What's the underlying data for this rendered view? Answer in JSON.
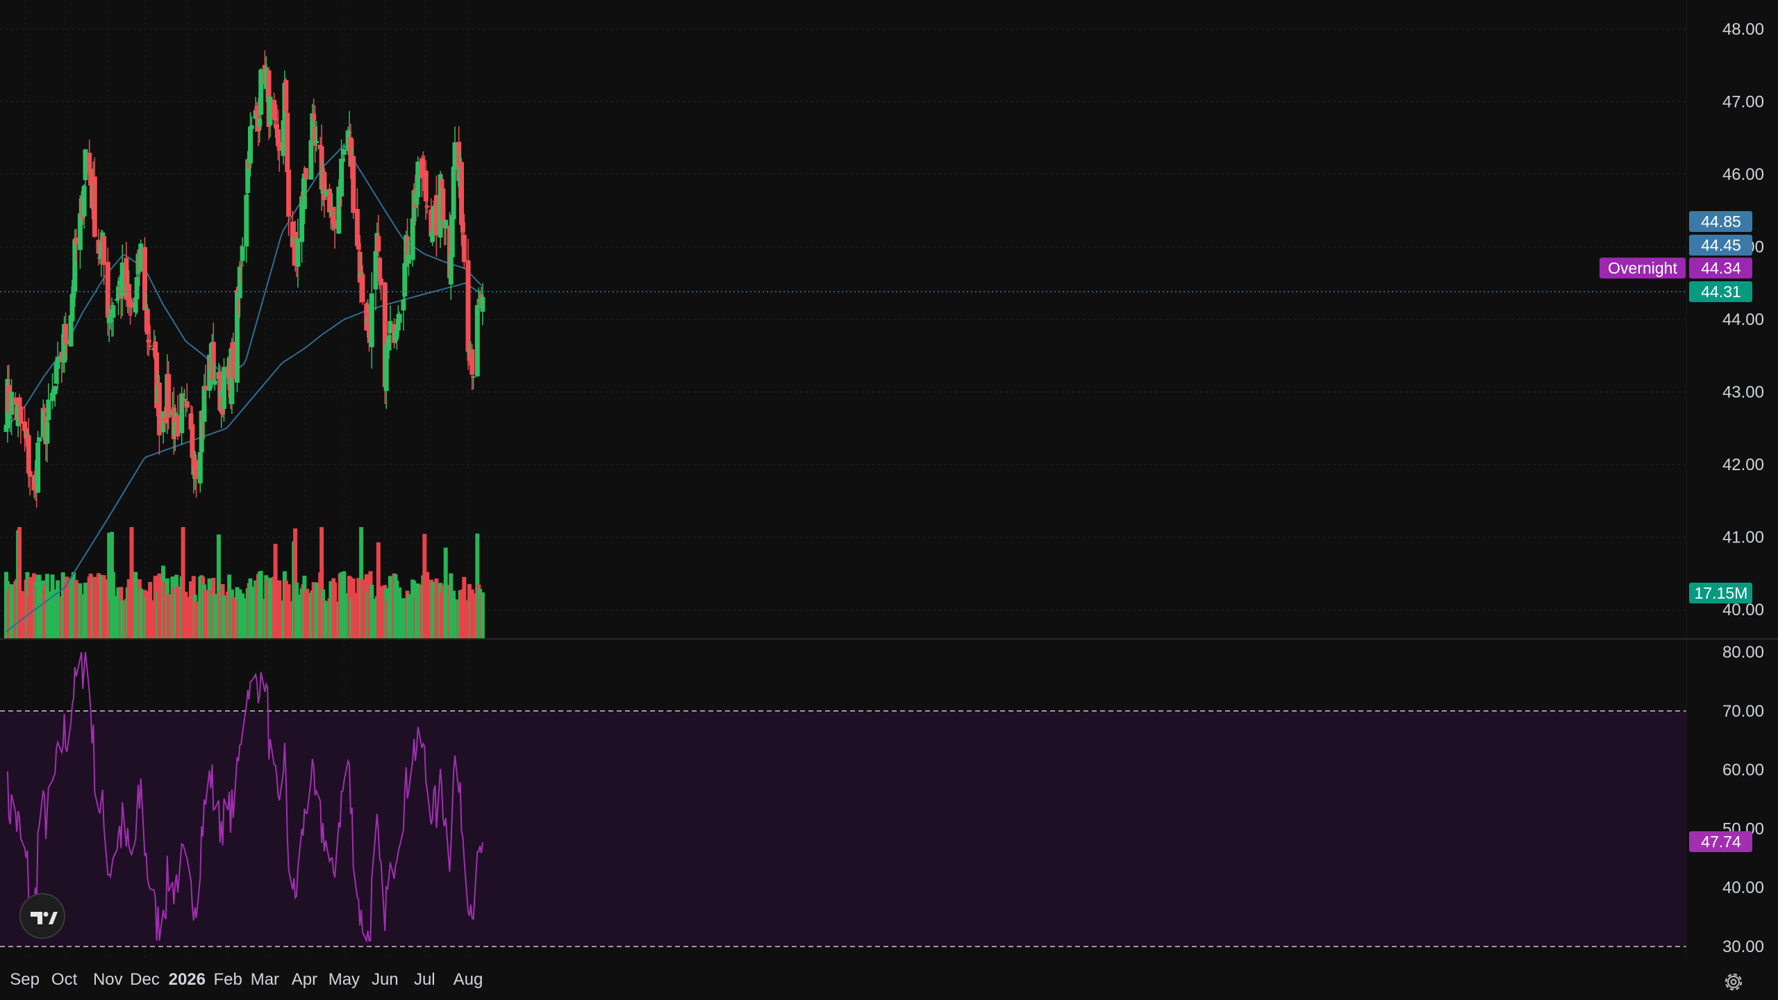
{
  "chart_data": [
    {
      "type": "candlestick",
      "title": "",
      "x_start": "2025-08-18",
      "x_ticks": [
        {
          "label": "Sep",
          "date": "2025-09-01",
          "bold": false
        },
        {
          "label": "Oct",
          "date": "2025-10-01",
          "bold": false
        },
        {
          "label": "Nov",
          "date": "2025-11-03",
          "bold": false
        },
        {
          "label": "Dec",
          "date": "2025-12-01",
          "bold": false
        },
        {
          "label": "2026",
          "date": "2026-01-02",
          "bold": true
        },
        {
          "label": "Feb",
          "date": "2026-02-02",
          "bold": false
        },
        {
          "label": "Mar",
          "date": "2026-03-02",
          "bold": false
        },
        {
          "label": "Apr",
          "date": "2026-04-01",
          "bold": false
        },
        {
          "label": "May",
          "date": "2026-05-01",
          "bold": false
        },
        {
          "label": "Jun",
          "date": "2026-06-01",
          "bold": false
        },
        {
          "label": "Jul",
          "date": "2026-07-01",
          "bold": false
        },
        {
          "label": "Aug",
          "date": "2026-08-03",
          "bold": false
        }
      ],
      "ylim": [
        39.6,
        48.4
      ],
      "y_ticks": [
        "48.00",
        "47.00",
        "46.00",
        "45.00",
        "44.00",
        "43.00",
        "42.00",
        "41.00",
        "40.00"
      ],
      "grid": true,
      "close_path": [
        [
          "2025-08-18",
          42.9
        ],
        [
          "2025-08-25",
          42.8
        ],
        [
          "2025-09-03",
          42.2
        ],
        [
          "2025-09-08",
          41.5
        ],
        [
          "2025-09-12",
          42.4
        ],
        [
          "2025-09-19",
          42.6
        ],
        [
          "2025-09-26",
          43.2
        ],
        [
          "2025-10-01",
          43.7
        ],
        [
          "2025-10-06",
          44.2
        ],
        [
          "2025-10-10",
          45.0
        ],
        [
          "2025-10-14",
          45.4
        ],
        [
          "2025-10-17",
          46.3
        ],
        [
          "2025-10-21",
          45.9
        ],
        [
          "2025-10-27",
          45.0
        ],
        [
          "2025-10-30",
          44.9
        ],
        [
          "2025-11-04",
          44.1
        ],
        [
          "2025-11-10",
          44.4
        ],
        [
          "2025-11-14",
          44.5
        ],
        [
          "2025-11-20",
          44.1
        ],
        [
          "2025-11-24",
          44.3
        ],
        [
          "2025-11-28",
          44.9
        ],
        [
          "2025-12-03",
          43.9
        ],
        [
          "2025-12-08",
          43.4
        ],
        [
          "2025-12-12",
          42.7
        ],
        [
          "2025-12-18",
          42.9
        ],
        [
          "2025-12-23",
          42.6
        ],
        [
          "2025-12-30",
          42.7
        ],
        [
          "2026-01-05",
          42.3
        ],
        [
          "2026-01-09",
          42.1
        ],
        [
          "2026-01-14",
          42.8
        ],
        [
          "2026-01-20",
          43.5
        ],
        [
          "2026-01-26",
          43.0
        ],
        [
          "2026-02-02",
          43.1
        ],
        [
          "2026-02-06",
          43.4
        ],
        [
          "2026-02-10",
          44.3
        ],
        [
          "2026-02-13",
          45.2
        ],
        [
          "2026-02-18",
          46.4
        ],
        [
          "2026-02-24",
          46.8
        ],
        [
          "2026-03-02",
          47.5
        ],
        [
          "2026-03-06",
          46.8
        ],
        [
          "2026-03-12",
          46.2
        ],
        [
          "2026-03-17",
          47.1
        ],
        [
          "2026-03-20",
          45.6
        ],
        [
          "2026-03-25",
          44.7
        ],
        [
          "2026-03-31",
          45.7
        ],
        [
          "2026-04-06",
          46.6
        ],
        [
          "2026-04-10",
          46.2
        ],
        [
          "2026-04-16",
          45.9
        ],
        [
          "2026-04-22",
          45.2
        ],
        [
          "2026-04-28",
          46.0
        ],
        [
          "2026-05-04",
          46.6
        ],
        [
          "2026-05-08",
          45.8
        ],
        [
          "2026-05-14",
          44.5
        ],
        [
          "2026-05-20",
          43.8
        ],
        [
          "2026-05-26",
          44.9
        ],
        [
          "2026-06-01",
          43.4
        ],
        [
          "2026-06-05",
          43.7
        ],
        [
          "2026-06-10",
          44.2
        ],
        [
          "2026-06-16",
          44.7
        ],
        [
          "2026-06-22",
          45.6
        ],
        [
          "2026-06-29",
          46.0
        ],
        [
          "2026-07-03",
          45.6
        ],
        [
          "2026-07-09",
          45.3
        ],
        [
          "2026-07-14",
          45.8
        ],
        [
          "2026-07-20",
          44.8
        ],
        [
          "2026-07-24",
          46.4
        ],
        [
          "2026-07-29",
          45.6
        ],
        [
          "2026-08-03",
          43.9
        ],
        [
          "2026-08-07",
          43.4
        ],
        [
          "2026-08-10",
          43.9
        ],
        [
          "2026-08-14",
          44.3
        ]
      ],
      "moving_averages": [
        {
          "points": [
            [
              "2025-08-18",
              42.5
            ],
            [
              "2025-09-01",
              42.8
            ],
            [
              "2025-09-15",
              43.2
            ],
            [
              "2025-10-01",
              43.6
            ],
            [
              "2025-10-15",
              44.1
            ],
            [
              "2025-11-01",
              44.6
            ],
            [
              "2025-11-15",
              44.9
            ],
            [
              "2025-12-01",
              44.7
            ],
            [
              "2025-12-15",
              44.2
            ],
            [
              "2026-01-01",
              43.7
            ],
            [
              "2026-01-15",
              43.5
            ],
            [
              "2026-02-01",
              43.2
            ],
            [
              "2026-02-15",
              43.4
            ],
            [
              "2026-03-01",
              44.3
            ],
            [
              "2026-03-15",
              45.2
            ],
            [
              "2026-04-01",
              45.7
            ],
            [
              "2026-04-15",
              46.1
            ],
            [
              "2026-05-01",
              46.4
            ],
            [
              "2026-05-15",
              46.0
            ],
            [
              "2026-06-01",
              45.5
            ],
            [
              "2026-06-15",
              45.1
            ],
            [
              "2026-07-01",
              44.9
            ],
            [
              "2026-07-15",
              44.8
            ],
            [
              "2026-08-01",
              44.7
            ],
            [
              "2026-08-14",
              44.45
            ]
          ]
        },
        {
          "points": [
            [
              "2025-08-18",
              39.7
            ],
            [
              "2025-09-01",
              39.9
            ],
            [
              "2025-10-01",
              40.3
            ],
            [
              "2025-11-01",
              41.2
            ],
            [
              "2025-12-01",
              42.1
            ],
            [
              "2026-01-01",
              42.3
            ],
            [
              "2026-02-01",
              42.5
            ],
            [
              "2026-02-15",
              42.8
            ],
            [
              "2026-03-01",
              43.1
            ],
            [
              "2026-03-15",
              43.4
            ],
            [
              "2026-04-01",
              43.6
            ],
            [
              "2026-04-15",
              43.8
            ],
            [
              "2026-05-01",
              44.0
            ],
            [
              "2026-05-15",
              44.1
            ],
            [
              "2026-06-01",
              44.2
            ],
            [
              "2026-07-01",
              44.35
            ],
            [
              "2026-08-01",
              44.5
            ],
            [
              "2026-08-14",
              44.34
            ]
          ]
        }
      ],
      "volume": {
        "last_label": "17.15M"
      },
      "price_tags": [
        {
          "value": 44.85,
          "label": "44.85",
          "color": "#3b7aa8"
        },
        {
          "value": 44.45,
          "label": "44.45",
          "color": "#3b7aa8"
        },
        {
          "value": 44.34,
          "label": "44.34",
          "color": "#9c27b0",
          "name": "Overnight"
        },
        {
          "value": 44.31,
          "label": "44.31",
          "color": "#089981"
        }
      ],
      "volume_tag": {
        "label": "17.15M",
        "color": "#089981"
      },
      "colors": {
        "up": "#2dbf62",
        "down": "#ef4f55",
        "ma": "#2f6d93",
        "volume_up": "#27b556",
        "volume_down": "#e8434b"
      }
    },
    {
      "type": "line",
      "title": "",
      "ylim": [
        28,
        82
      ],
      "y_ticks": [
        "80.00",
        "70.00",
        "60.00",
        "50.00",
        "40.00",
        "30.00"
      ],
      "bands": [
        30,
        70
      ],
      "last_label": "47.74",
      "color": "#a12fb0",
      "band_fill": "#1e0f24"
    }
  ],
  "icons": {
    "logo": "tradingview-logo-icon",
    "settings": "settings-gear-icon"
  }
}
